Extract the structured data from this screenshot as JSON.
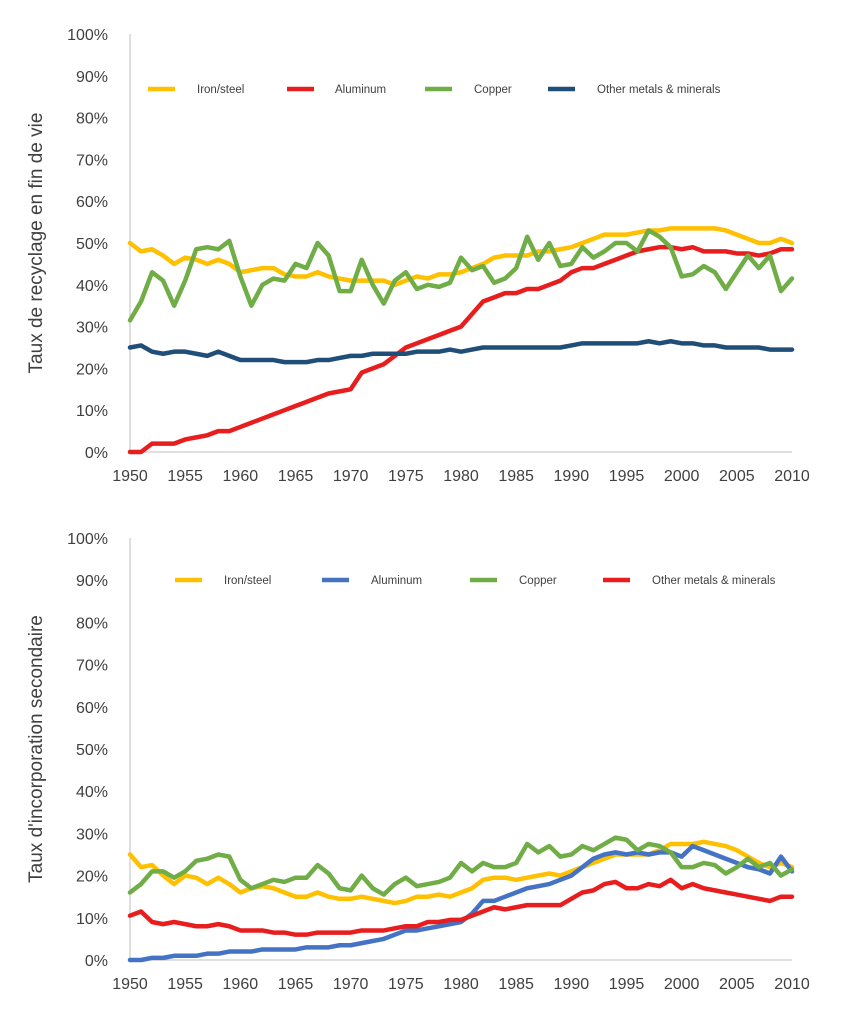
{
  "chart_data": [
    {
      "type": "line",
      "title": "",
      "xlabel": "",
      "ylabel": "Taux de recyclage en fin de vie",
      "xlim": [
        1950,
        2010
      ],
      "ylim": [
        0,
        100
      ],
      "x_ticks": [
        "1950",
        "1955",
        "1960",
        "1965",
        "1970",
        "1975",
        "1980",
        "1985",
        "1990",
        "1995",
        "2000",
        "2005",
        "2010"
      ],
      "y_ticks": [
        "0%",
        "10%",
        "20%",
        "30%",
        "40%",
        "50%",
        "60%",
        "70%",
        "80%",
        "90%",
        "100%"
      ],
      "grid": false,
      "legend_position": "top",
      "x": [
        1950,
        1951,
        1952,
        1953,
        1954,
        1955,
        1956,
        1957,
        1958,
        1959,
        1960,
        1961,
        1962,
        1963,
        1964,
        1965,
        1966,
        1967,
        1968,
        1969,
        1970,
        1971,
        1972,
        1973,
        1974,
        1975,
        1976,
        1977,
        1978,
        1979,
        1980,
        1981,
        1982,
        1983,
        1984,
        1985,
        1986,
        1987,
        1988,
        1989,
        1990,
        1991,
        1992,
        1993,
        1994,
        1995,
        1996,
        1997,
        1998,
        1999,
        2000,
        2001,
        2002,
        2003,
        2004,
        2005,
        2006,
        2007,
        2008,
        2009,
        2010
      ],
      "series": [
        {
          "name": "Iron/steel",
          "color": "#FFC000",
          "values": [
            50,
            48,
            48.5,
            47,
            45,
            46.5,
            46,
            45,
            46,
            45,
            43,
            43.5,
            44,
            44,
            42.5,
            42,
            42,
            43,
            42,
            41.5,
            41,
            41,
            41,
            41,
            40,
            41,
            42,
            41.5,
            42.5,
            42.5,
            43,
            44,
            45,
            46.5,
            47,
            47,
            47,
            48,
            48,
            48.5,
            49,
            50,
            51,
            52,
            52,
            52,
            52.5,
            53,
            53,
            53.5,
            53.5,
            53.5,
            53.5,
            53.5,
            53,
            52,
            51,
            50,
            50,
            51,
            50
          ]
        },
        {
          "name": "Aluminum",
          "color": "#E81E1E",
          "values": [
            0,
            0,
            2,
            2,
            2,
            3,
            3.5,
            4,
            5,
            5,
            6,
            7,
            8,
            9,
            10,
            11,
            12,
            13,
            14,
            14.5,
            15,
            19,
            20,
            21,
            23,
            25,
            26,
            27,
            28,
            29,
            30,
            33,
            36,
            37,
            38,
            38,
            39,
            39,
            40,
            41,
            43,
            44,
            44,
            45,
            46,
            47,
            48,
            48.5,
            49,
            49,
            48.5,
            49,
            48,
            48,
            48,
            47.5,
            47.5,
            47,
            47.5,
            48.5,
            48.5
          ]
        },
        {
          "name": "Copper",
          "color": "#70AD47",
          "values": [
            31.5,
            36,
            43,
            41,
            35,
            41,
            48.5,
            49,
            48.5,
            50.5,
            42,
            35,
            40,
            41.5,
            41,
            45,
            44,
            50,
            47,
            38.5,
            38.5,
            46,
            40,
            35.5,
            41,
            43,
            39,
            40,
            39.5,
            40.5,
            46.5,
            43.5,
            44.5,
            40.5,
            41.5,
            44,
            51.5,
            46,
            50,
            44.5,
            45,
            49,
            46.5,
            48,
            50,
            50,
            48,
            53,
            51.5,
            49,
            42,
            42.5,
            44.5,
            43,
            39,
            43,
            47,
            44,
            47,
            38.5,
            41.5
          ]
        },
        {
          "name": "Other metals & minerals",
          "color": "#1F4E79",
          "values": [
            25,
            25.5,
            24,
            23.5,
            24,
            24,
            23.5,
            23,
            24,
            23,
            22,
            22,
            22,
            22,
            21.5,
            21.5,
            21.5,
            22,
            22,
            22.5,
            23,
            23,
            23.5,
            23.5,
            23.5,
            23.5,
            24,
            24,
            24,
            24.5,
            24,
            24.5,
            25,
            25,
            25,
            25,
            25,
            25,
            25,
            25,
            25.5,
            26,
            26,
            26,
            26,
            26,
            26,
            26.5,
            26,
            26.5,
            26,
            26,
            25.5,
            25.5,
            25,
            25,
            25,
            25,
            24.5,
            24.5,
            24.5
          ]
        }
      ]
    },
    {
      "type": "line",
      "title": "",
      "xlabel": "",
      "ylabel": "Taux d'incorporation secondaire",
      "xlim": [
        1950,
        2010
      ],
      "ylim": [
        0,
        100
      ],
      "x_ticks": [
        "1950",
        "1955",
        "1960",
        "1965",
        "1970",
        "1975",
        "1980",
        "1985",
        "1990",
        "1995",
        "2000",
        "2005",
        "2010"
      ],
      "y_ticks": [
        "0%",
        "10%",
        "20%",
        "30%",
        "40%",
        "50%",
        "60%",
        "70%",
        "80%",
        "90%",
        "100%"
      ],
      "grid": false,
      "legend_position": "top",
      "x": [
        1950,
        1951,
        1952,
        1953,
        1954,
        1955,
        1956,
        1957,
        1958,
        1959,
        1960,
        1961,
        1962,
        1963,
        1964,
        1965,
        1966,
        1967,
        1968,
        1969,
        1970,
        1971,
        1972,
        1973,
        1974,
        1975,
        1976,
        1977,
        1978,
        1979,
        1980,
        1981,
        1982,
        1983,
        1984,
        1985,
        1986,
        1987,
        1988,
        1989,
        1990,
        1991,
        1992,
        1993,
        1994,
        1995,
        1996,
        1997,
        1998,
        1999,
        2000,
        2001,
        2002,
        2003,
        2004,
        2005,
        2006,
        2007,
        2008,
        2009,
        2010
      ],
      "series": [
        {
          "name": "Iron/steel",
          "color": "#FFC000",
          "values": [
            25,
            22,
            22.5,
            20,
            18,
            20,
            19.5,
            18,
            19.5,
            18,
            16,
            17,
            17.5,
            17,
            16,
            15,
            15,
            16,
            15,
            14.5,
            14.5,
            15,
            14.5,
            14,
            13.5,
            14,
            15,
            15,
            15.5,
            15,
            16,
            17,
            19,
            19.5,
            19.5,
            19,
            19.5,
            20,
            20.5,
            20,
            21,
            22,
            23,
            24,
            25,
            25,
            25,
            25,
            26,
            27.5,
            27.5,
            27.5,
            28,
            27.5,
            27,
            26,
            24.5,
            23,
            22,
            23,
            22
          ]
        },
        {
          "name": "Aluminum",
          "color": "#4472C4",
          "values": [
            0,
            0,
            0.5,
            0.5,
            1,
            1,
            1,
            1.5,
            1.5,
            2,
            2,
            2,
            2.5,
            2.5,
            2.5,
            2.5,
            3,
            3,
            3,
            3.5,
            3.5,
            4,
            4.5,
            5,
            6,
            7,
            7,
            7.5,
            8,
            8.5,
            9,
            11,
            14,
            14,
            15,
            16,
            17,
            17.5,
            18,
            19,
            20,
            22,
            24,
            25,
            25.5,
            25,
            25.5,
            25,
            25.5,
            25.5,
            24.5,
            27,
            26,
            25,
            24,
            23,
            22,
            21.5,
            20.5,
            24.5,
            21
          ]
        },
        {
          "name": "Copper",
          "color": "#70AD47",
          "values": [
            16,
            18,
            21,
            21,
            19.5,
            21,
            23.5,
            24,
            25,
            24.5,
            19,
            17,
            18,
            19,
            18.5,
            19.5,
            19.5,
            22.5,
            20.5,
            17,
            16.5,
            20,
            17,
            15.5,
            18,
            19.5,
            17.5,
            18,
            18.5,
            19.5,
            23,
            21,
            23,
            22,
            22,
            23,
            27.5,
            25.5,
            27,
            24.5,
            25,
            27,
            26,
            27.5,
            29,
            28.5,
            26,
            27.5,
            27,
            25.5,
            22,
            22,
            23,
            22.5,
            20.5,
            22,
            24,
            22,
            23,
            20,
            21.5
          ]
        },
        {
          "name": "Other metals & minerals",
          "color": "#E81E1E",
          "values": [
            10.5,
            11.5,
            9,
            8.5,
            9,
            8.5,
            8,
            8,
            8.5,
            8,
            7,
            7,
            7,
            6.5,
            6.5,
            6,
            6,
            6.5,
            6.5,
            6.5,
            6.5,
            7,
            7,
            7,
            7.5,
            8,
            8,
            9,
            9,
            9.5,
            9.5,
            10.5,
            11.5,
            12.5,
            12,
            12.5,
            13,
            13,
            13,
            13,
            14.5,
            16,
            16.5,
            18,
            18.5,
            17,
            17,
            18,
            17.5,
            19,
            17,
            18,
            17,
            16.5,
            16,
            15.5,
            15,
            14.5,
            14,
            15,
            15
          ]
        }
      ]
    }
  ]
}
